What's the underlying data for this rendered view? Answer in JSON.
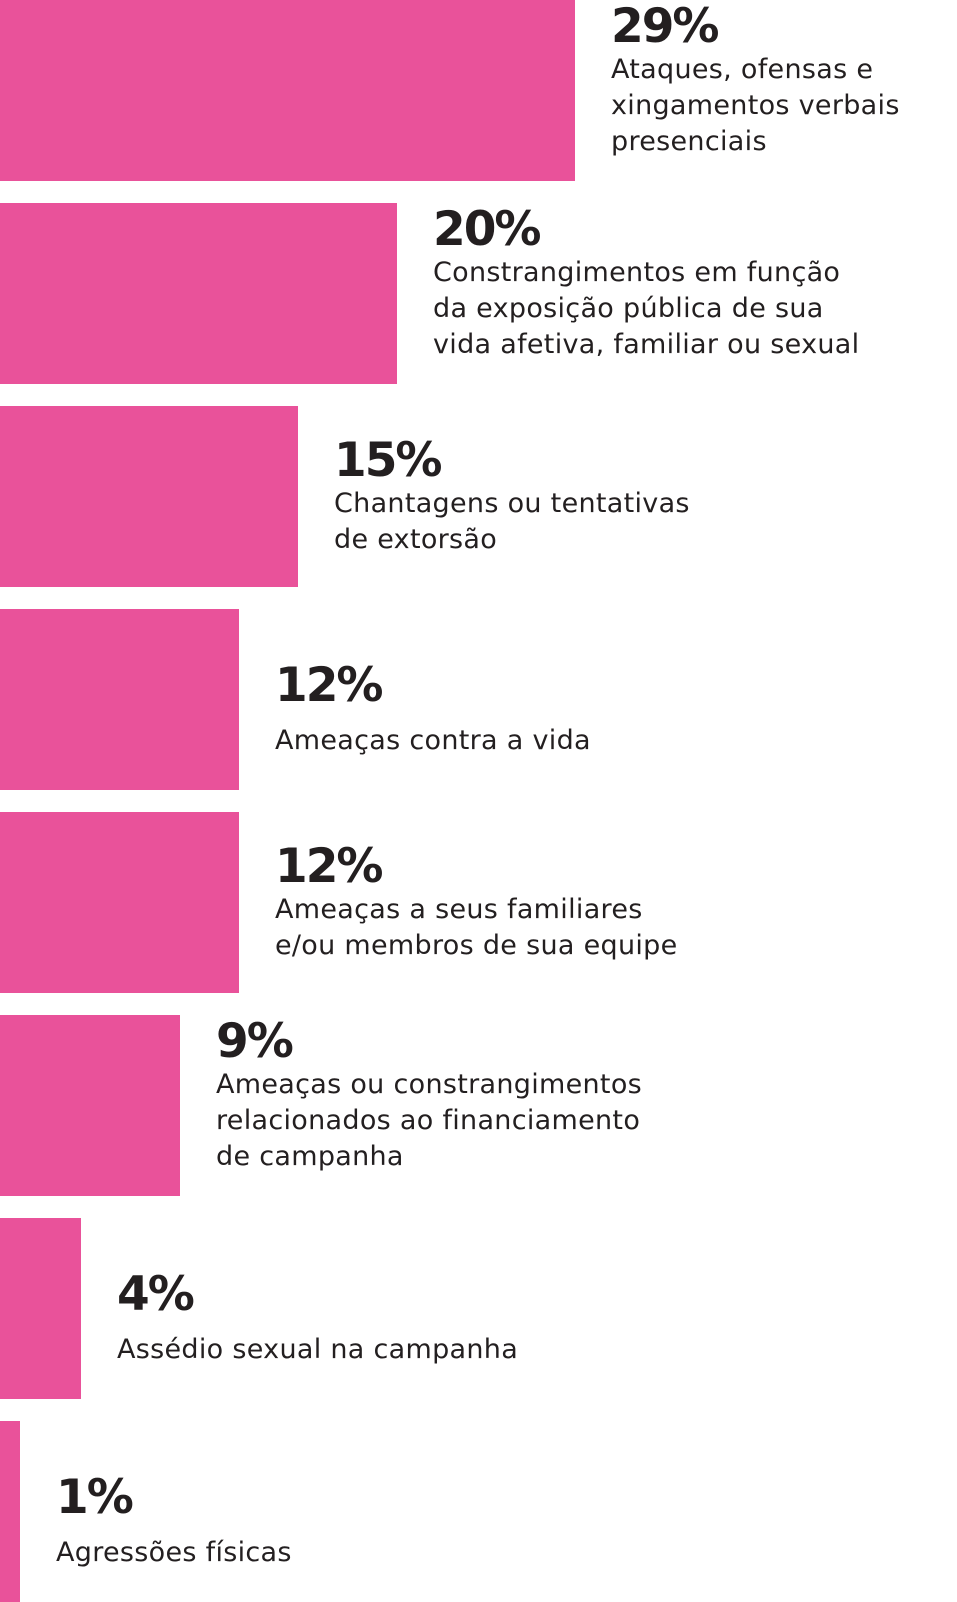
{
  "chart_data": {
    "type": "bar",
    "orientation": "horizontal",
    "bar_color": "#e9529a",
    "text_color": "#231f20",
    "background": "#ffffff",
    "unit": "%",
    "items": [
      {
        "value": 29,
        "value_label": "29%",
        "label": "Ataques, ofensas e\nxingamentos verbais\npresenciais"
      },
      {
        "value": 20,
        "value_label": "20%",
        "label": "Constrangimentos em função\nda exposição pública de sua\nvida afetiva, familiar ou sexual"
      },
      {
        "value": 15,
        "value_label": "15%",
        "label": "Chantagens ou tentativas\nde extorsão"
      },
      {
        "value": 12,
        "value_label": "12%",
        "label": "Ameaças contra a vida"
      },
      {
        "value": 12,
        "value_label": "12%",
        "label": "Ameaças a seus familiares\ne/ou membros de sua equipe"
      },
      {
        "value": 9,
        "value_label": "9%",
        "label": "Ameaças ou constrangimentos\nrelacionados ao financiamento\nde campanha"
      },
      {
        "value": 4,
        "value_label": "4%",
        "label": "Assédio sexual na campanha"
      },
      {
        "value": 1,
        "value_label": "1%",
        "label": "Agressões físicas"
      }
    ]
  }
}
